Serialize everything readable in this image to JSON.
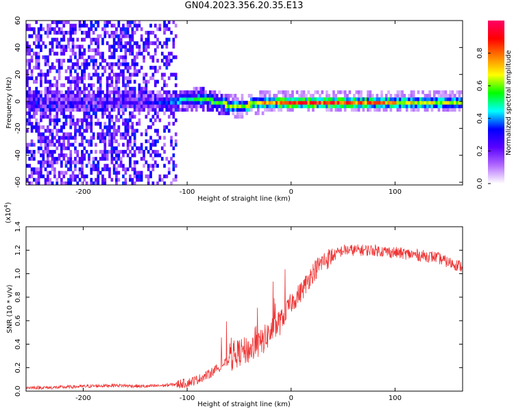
{
  "title": "GN04.2023.356.20.35.E13",
  "chart_data": [
    {
      "type": "heatmap",
      "xlabel": "Height of straight line (km)",
      "ylabel": "Frequency (Hz)",
      "xlim": [
        -255,
        165
      ],
      "ylim": [
        -62,
        60
      ],
      "xticks": [
        -200,
        -100,
        0,
        100
      ],
      "yticks": [
        -60,
        -40,
        -20,
        0,
        20,
        40,
        60
      ],
      "colorbar": {
        "label": "Normalized spectral amplitude",
        "range": [
          0,
          1
        ],
        "ticks": [
          "0.0",
          "0.2",
          "0.4",
          "0.6",
          "0.8"
        ],
        "tick_values": [
          0,
          0.2,
          0.4,
          0.6,
          0.8
        ],
        "colors": [
          "#ffffff",
          "#b36bff",
          "#5a00ff",
          "#0000ff",
          "#00ffff",
          "#00ff00",
          "#ffff00",
          "#ff8000",
          "#ff0000",
          "#ff0066"
        ]
      },
      "ridge": {
        "x": [
          -160,
          -120,
          -100,
          -90,
          -80,
          -70,
          -60,
          -50,
          -40,
          -30,
          -20,
          -10,
          0,
          20,
          60,
          100,
          165
        ],
        "frequency": [
          0,
          0,
          1,
          2,
          1,
          -1,
          -3,
          -4,
          -2,
          -1,
          0,
          0,
          0,
          0,
          0,
          0,
          0
        ],
        "amplitude": [
          0.25,
          0.35,
          0.45,
          0.55,
          0.55,
          0.55,
          0.6,
          0.6,
          0.65,
          0.7,
          0.75,
          0.8,
          0.85,
          0.85,
          0.8,
          0.7,
          0.6
        ]
      }
    },
    {
      "type": "line",
      "xlabel": "Height of straight line (km)",
      "ylabel": "SNR (10 * v/v)",
      "ylabel_multiplier": "(x10",
      "ylabel_exponent": "4",
      "ylabel_suffix": ")",
      "xlim": [
        -255,
        165
      ],
      "ylim": [
        0,
        1.4
      ],
      "xticks": [
        -200,
        -100,
        0,
        100
      ],
      "yticks": [
        0,
        0.2,
        0.4,
        0.6,
        0.8,
        1.0,
        1.2,
        1.4
      ],
      "ytick_labels": [
        "0.0",
        "0.2",
        "0.4",
        "0.6",
        "0.8",
        "1.0",
        "1.2",
        "1.4"
      ],
      "series": [
        {
          "color": "#ee3333",
          "x": [
            -255,
            -230,
            -200,
            -170,
            -140,
            -120,
            -100,
            -90,
            -80,
            -70,
            -60,
            -50,
            -40,
            -30,
            -20,
            -10,
            0,
            10,
            20,
            30,
            40,
            50,
            60,
            80,
            100,
            120,
            140,
            150,
            165
          ],
          "values": [
            0.03,
            0.03,
            0.04,
            0.05,
            0.04,
            0.05,
            0.07,
            0.1,
            0.14,
            0.2,
            0.26,
            0.33,
            0.35,
            0.4,
            0.5,
            0.6,
            0.75,
            0.85,
            1.0,
            1.1,
            1.15,
            1.2,
            1.2,
            1.2,
            1.18,
            1.16,
            1.14,
            1.1,
            1.06
          ]
        }
      ]
    }
  ]
}
